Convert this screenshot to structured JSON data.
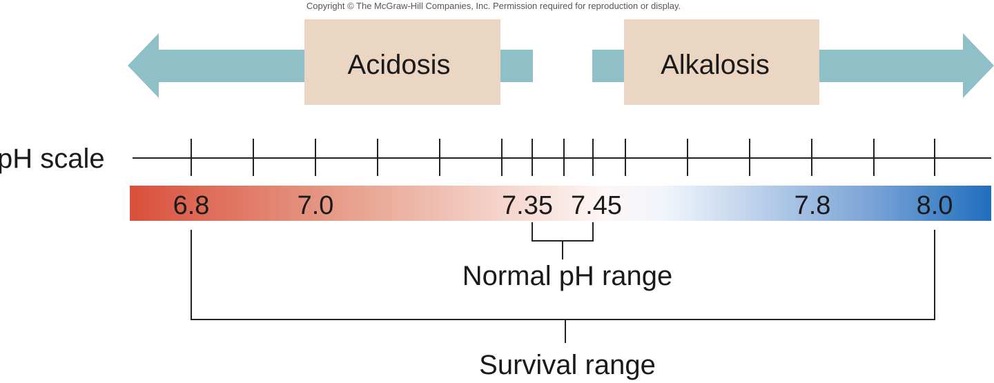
{
  "copyright": "Copyright © The McGraw-Hill Companies, Inc. Permission required for reproduction or display.",
  "acidosis": {
    "label": "Acidosis"
  },
  "alkalosis": {
    "label": "Alkalosis"
  },
  "scale": {
    "label": "pH scale",
    "values": [
      {
        "text": "6.8"
      },
      {
        "text": "7.0"
      },
      {
        "text": "7.35"
      },
      {
        "text": "7.45"
      },
      {
        "text": "7.8"
      },
      {
        "text": "8.0"
      }
    ]
  },
  "normal_range": {
    "label": "Normal pH range"
  },
  "survival_range": {
    "label": "Survival range"
  },
  "colors": {
    "arrow": "#8fbfc7",
    "box": "#ead6c2",
    "acid": "#d9503c",
    "neutral": "#fdf7f5",
    "base": "#1f6fbd",
    "line": "#222222"
  }
}
